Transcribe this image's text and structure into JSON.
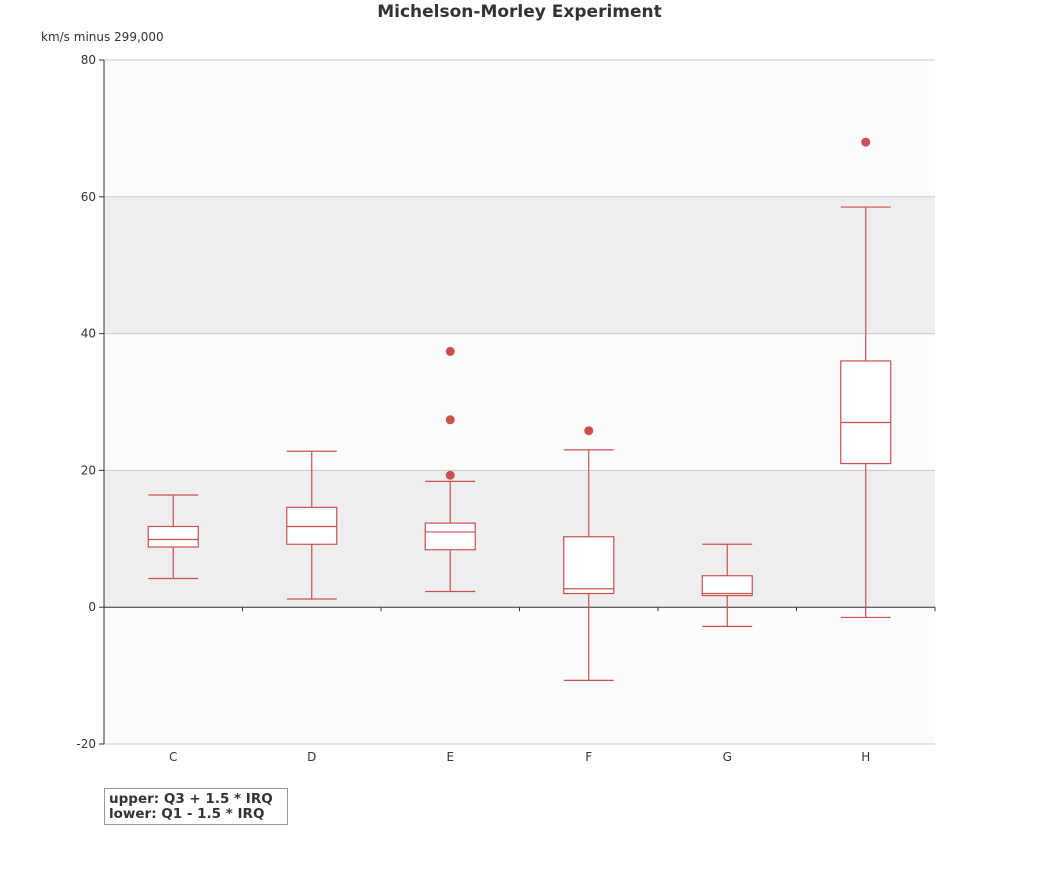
{
  "chart_data": {
    "type": "boxplot",
    "title": "Michelson-Morley Experiment",
    "ylabel": "km/s minus 299,000",
    "xlabel": "",
    "ylim": [
      -20,
      80
    ],
    "y_ticks": [
      80,
      60,
      40,
      20,
      0,
      -20
    ],
    "y_tick_labels": [
      "80",
      "60",
      "40",
      "20",
      "0",
      "-20"
    ],
    "categories": [
      "C",
      "D",
      "E",
      "F",
      "G",
      "H"
    ],
    "grid": true,
    "color": "#c9504f",
    "boxes": [
      {
        "name": "C",
        "whisker_low": 4.2,
        "q1": 8.8,
        "median": 9.9,
        "q3": 11.8,
        "whisker_high": 16.4,
        "outliers": []
      },
      {
        "name": "D",
        "whisker_low": 1.2,
        "q1": 9.2,
        "median": 11.8,
        "q3": 14.6,
        "whisker_high": 22.8,
        "outliers": []
      },
      {
        "name": "E",
        "whisker_low": 2.3,
        "q1": 8.4,
        "median": 11.0,
        "q3": 12.3,
        "whisker_high": 18.4,
        "outliers": [
          19.3,
          27.4,
          37.4
        ]
      },
      {
        "name": "F",
        "whisker_low": -10.7,
        "q1": 2.0,
        "median": 2.7,
        "q3": 10.3,
        "whisker_high": 23.0,
        "outliers": [
          25.8
        ]
      },
      {
        "name": "G",
        "whisker_low": -2.8,
        "q1": 1.7,
        "median": 2.0,
        "q3": 4.6,
        "whisker_high": 9.2,
        "outliers": []
      },
      {
        "name": "H",
        "whisker_low": -1.5,
        "q1": 21.0,
        "median": 27.0,
        "q3": 36.0,
        "whisker_high": 58.5,
        "outliers": [
          68.0
        ]
      }
    ],
    "legend_lines": [
      "upper: Q3 + 1.5 * IRQ",
      "lower: Q1 - 1.5 * IRQ"
    ]
  }
}
